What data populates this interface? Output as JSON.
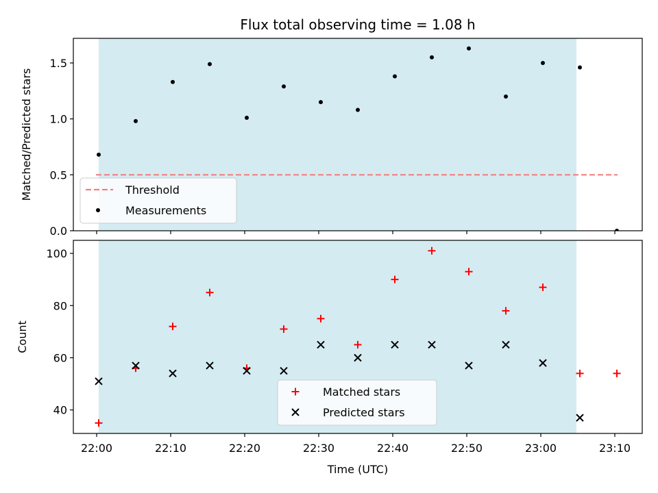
{
  "chart_data": {
    "title": "Flux total observing time = 1.08 h",
    "xlabel": "Time (UTC)",
    "x_ticks": [
      "22:00",
      "22:10",
      "22:20",
      "22:30",
      "22:40",
      "22:50",
      "23:00",
      "23:10"
    ],
    "shaded_region": {
      "x_start": "22:00",
      "x_end": "23:05",
      "color": "#add8e6"
    },
    "panels": [
      {
        "type": "scatter",
        "ylabel": "Matched/Predicted stars",
        "ylim": [
          0,
          1.72
        ],
        "y_ticks": [
          "0.0",
          "0.5",
          "1.0",
          "1.5"
        ],
        "threshold": {
          "name": "Threshold",
          "value": 0.5,
          "x_start": "22:00",
          "x_end": "23:10",
          "color": "#f08080"
        },
        "series": [
          {
            "name": "Measurements",
            "color": "#000000",
            "marker": "dot",
            "points": [
              [
                "22:00",
                0.68
              ],
              [
                "22:05",
                0.98
              ],
              [
                "22:10",
                1.33
              ],
              [
                "22:15",
                1.49
              ],
              [
                "22:20",
                1.01
              ],
              [
                "22:25",
                1.29
              ],
              [
                "22:30",
                1.15
              ],
              [
                "22:35",
                1.08
              ],
              [
                "22:40",
                1.38
              ],
              [
                "22:45",
                1.55
              ],
              [
                "22:50",
                1.63
              ],
              [
                "22:55",
                1.2
              ],
              [
                "23:00",
                1.5
              ],
              [
                "23:05",
                1.46
              ],
              [
                "23:10",
                0.0
              ]
            ]
          }
        ],
        "legend_position": "lower-left"
      },
      {
        "type": "scatter",
        "ylabel": "Count",
        "ylim": [
          31,
          105
        ],
        "y_ticks": [
          "40",
          "60",
          "80",
          "100"
        ],
        "series": [
          {
            "name": "Matched stars",
            "color": "#ff0000",
            "marker": "plus",
            "points": [
              [
                "22:00",
                35
              ],
              [
                "22:05",
                56
              ],
              [
                "22:10",
                72
              ],
              [
                "22:15",
                85
              ],
              [
                "22:20",
                56
              ],
              [
                "22:25",
                71
              ],
              [
                "22:30",
                75
              ],
              [
                "22:35",
                65
              ],
              [
                "22:40",
                90
              ],
              [
                "22:45",
                101
              ],
              [
                "22:50",
                93
              ],
              [
                "22:55",
                78
              ],
              [
                "23:00",
                87
              ],
              [
                "23:05",
                54
              ],
              [
                "23:10",
                54
              ]
            ]
          },
          {
            "name": "Predicted stars",
            "color": "#000000",
            "marker": "x",
            "points": [
              [
                "22:00",
                51
              ],
              [
                "22:05",
                57
              ],
              [
                "22:10",
                54
              ],
              [
                "22:15",
                57
              ],
              [
                "22:20",
                55
              ],
              [
                "22:25",
                55
              ],
              [
                "22:30",
                65
              ],
              [
                "22:35",
                60
              ],
              [
                "22:40",
                65
              ],
              [
                "22:45",
                65
              ],
              [
                "22:50",
                57
              ],
              [
                "22:55",
                65
              ],
              [
                "23:00",
                58
              ],
              [
                "23:05",
                37
              ]
            ]
          }
        ],
        "legend_position": "lower-center"
      }
    ]
  }
}
